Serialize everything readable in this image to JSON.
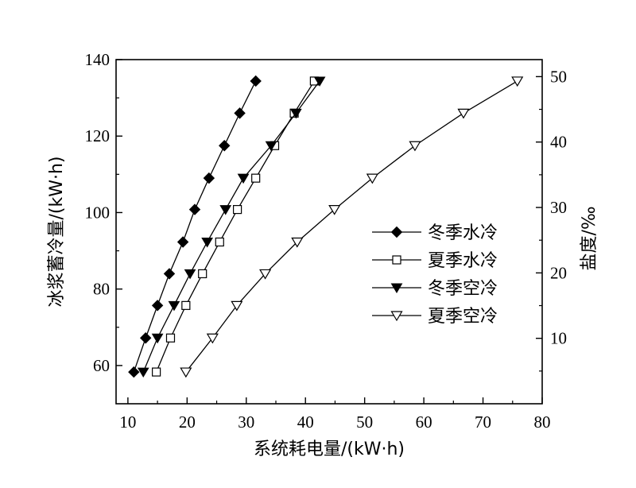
{
  "chart_data": {
    "type": "line",
    "xlabel": "系统耗电量/(kW·h)",
    "ylabel": "冰浆蓄冷量/(kW·h)",
    "y2label": "盐度/‰",
    "xlim": [
      8,
      80
    ],
    "ylim": [
      50,
      140
    ],
    "y2lim": [
      0,
      52.6
    ],
    "x_ticks": [
      "10",
      "20",
      "30",
      "40",
      "50",
      "60",
      "70",
      "80"
    ],
    "y_ticks": [
      "60",
      "80",
      "100",
      "120",
      "140"
    ],
    "y2_ticks": [
      "10",
      "20",
      "30",
      "40",
      "50"
    ],
    "grid": false,
    "legend_position": "center-right",
    "series": [
      {
        "name": "冬季水冷",
        "marker": "filled-diamond",
        "color": "#000000",
        "points": [
          [
            11.0,
            58.3
          ],
          [
            13.0,
            67.2
          ],
          [
            15.0,
            75.7
          ],
          [
            17.0,
            84.0
          ],
          [
            19.3,
            92.3
          ],
          [
            21.3,
            100.8
          ],
          [
            23.7,
            109.0
          ],
          [
            26.3,
            117.5
          ],
          [
            28.9,
            126.0
          ],
          [
            31.6,
            134.4
          ]
        ]
      },
      {
        "name": "夏季水冷",
        "marker": "open-square",
        "color": "#000000",
        "points": [
          [
            14.8,
            58.3
          ],
          [
            17.2,
            67.2
          ],
          [
            19.8,
            75.7
          ],
          [
            22.6,
            84.0
          ],
          [
            25.5,
            92.3
          ],
          [
            28.5,
            100.8
          ],
          [
            31.6,
            109.0
          ],
          [
            34.8,
            117.5
          ],
          [
            38.1,
            126.0
          ],
          [
            41.5,
            134.4
          ]
        ]
      },
      {
        "name": "冬季空冷",
        "marker": "filled-triangle-down",
        "color": "#000000",
        "points": [
          [
            12.6,
            58.3
          ],
          [
            15.0,
            67.2
          ],
          [
            17.8,
            75.7
          ],
          [
            20.5,
            84.0
          ],
          [
            23.4,
            92.3
          ],
          [
            26.5,
            100.8
          ],
          [
            29.5,
            109.0
          ],
          [
            34.2,
            117.5
          ],
          [
            38.4,
            126.0
          ],
          [
            42.4,
            134.4
          ]
        ]
      },
      {
        "name": "夏季空冷",
        "marker": "open-triangle-down",
        "color": "#000000",
        "points": [
          [
            19.8,
            58.3
          ],
          [
            24.3,
            67.2
          ],
          [
            28.4,
            75.7
          ],
          [
            33.2,
            84.0
          ],
          [
            38.6,
            92.3
          ],
          [
            44.9,
            100.8
          ],
          [
            51.3,
            109.0
          ],
          [
            58.5,
            117.5
          ],
          [
            66.7,
            126.0
          ],
          [
            75.8,
            134.4
          ]
        ]
      }
    ]
  }
}
